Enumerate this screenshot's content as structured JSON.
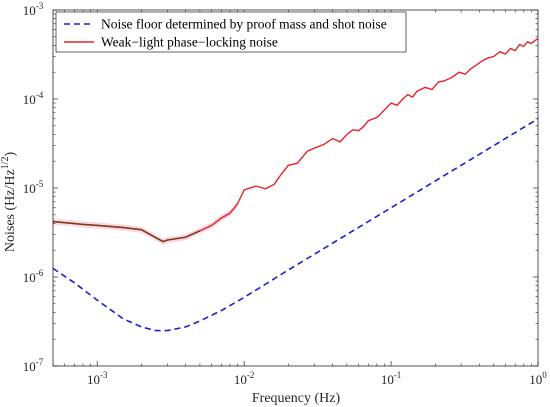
{
  "chart_data": {
    "type": "line",
    "xscale": "log",
    "yscale": "log",
    "xlim": [
      0.0005,
      1
    ],
    "ylim": [
      1e-07,
      0.001
    ],
    "xlabel": "Frequency (Hz)",
    "ylabel": {
      "main": "Noises  (Hz/Hz",
      "sup": "1/2",
      "close": ")"
    },
    "x_ticks": [
      {
        "value": 0.001,
        "base": "10",
        "exp": "-3"
      },
      {
        "value": 0.01,
        "base": "10",
        "exp": "-2"
      },
      {
        "value": 0.1,
        "base": "10",
        "exp": "-1"
      },
      {
        "value": 1,
        "base": "10",
        "exp": "0"
      }
    ],
    "y_ticks": [
      {
        "value": 1e-07,
        "base": "10",
        "exp": "-7"
      },
      {
        "value": 1e-06,
        "base": "10",
        "exp": "-6"
      },
      {
        "value": 1e-05,
        "base": "10",
        "exp": "-5"
      },
      {
        "value": 0.0001,
        "base": "10",
        "exp": "-4"
      },
      {
        "value": 0.001,
        "base": "10",
        "exp": "-3"
      }
    ],
    "legend_position": "top-left",
    "series": [
      {
        "name": "Noise floor determined by proof mass and shot noise",
        "color": "#1f1fcf",
        "style": "dashed",
        "x": [
          0.0005,
          0.0007,
          0.001,
          0.0015,
          0.002,
          0.0025,
          0.003,
          0.004,
          0.005,
          0.007,
          0.01,
          0.02,
          0.05,
          0.1,
          0.2,
          0.5,
          1
        ],
        "y": [
          1.25e-06,
          8.6e-07,
          5.5e-07,
          3.4e-07,
          2.75e-07,
          2.5e-07,
          2.5e-07,
          2.75e-07,
          3.2e-07,
          4.2e-07,
          5.9e-07,
          1.2e-06,
          3e-06,
          6e-06,
          1.2e-05,
          3e-05,
          6e-05
        ]
      },
      {
        "name": "Weak−light phase−locking noise",
        "color": "#e8232a",
        "low_freq_color": "#7a3b18",
        "style": "solid",
        "x": [
          0.0005,
          0.0008,
          0.001,
          0.0015,
          0.002,
          0.0028,
          0.003,
          0.004,
          0.005,
          0.006,
          0.007,
          0.008,
          0.009,
          0.01,
          0.012,
          0.014,
          0.016,
          0.018,
          0.02,
          0.023,
          0.027,
          0.03,
          0.035,
          0.04,
          0.045,
          0.05,
          0.055,
          0.06,
          0.065,
          0.07,
          0.08,
          0.09,
          0.1,
          0.11,
          0.12,
          0.13,
          0.14,
          0.15,
          0.17,
          0.19,
          0.21,
          0.23,
          0.26,
          0.29,
          0.32,
          0.35,
          0.38,
          0.42,
          0.46,
          0.5,
          0.55,
          0.6,
          0.65,
          0.7,
          0.75,
          0.8,
          0.85,
          0.9,
          0.95,
          1.0
        ],
        "y": [
          4.2e-06,
          3.9e-06,
          3.8e-06,
          3.6e-06,
          3.4e-06,
          2.5e-06,
          2.6e-06,
          2.8e-06,
          3.3e-06,
          3.8e-06,
          4.6e-06,
          5.2e-06,
          6.6e-06,
          9.5e-06,
          1.05e-05,
          9.8e-06,
          1.1e-05,
          1.45e-05,
          1.8e-05,
          1.9e-05,
          2.6e-05,
          2.8e-05,
          3.1e-05,
          3.6e-05,
          3.3e-05,
          4e-05,
          4.5e-05,
          4.4e-05,
          4.9e-05,
          5.7e-05,
          6.2e-05,
          7.5e-05,
          9e-05,
          8.5e-05,
          0.0001,
          0.000112,
          0.000105,
          0.000122,
          0.000135,
          0.000128,
          0.000155,
          0.00016,
          0.000175,
          0.0002,
          0.00019,
          0.00022,
          0.00024,
          0.00027,
          0.00029,
          0.0003,
          0.00034,
          0.00032,
          0.00037,
          0.00035,
          0.00041,
          0.00039,
          0.00044,
          0.00042,
          0.00045,
          0.00048
        ]
      }
    ]
  }
}
